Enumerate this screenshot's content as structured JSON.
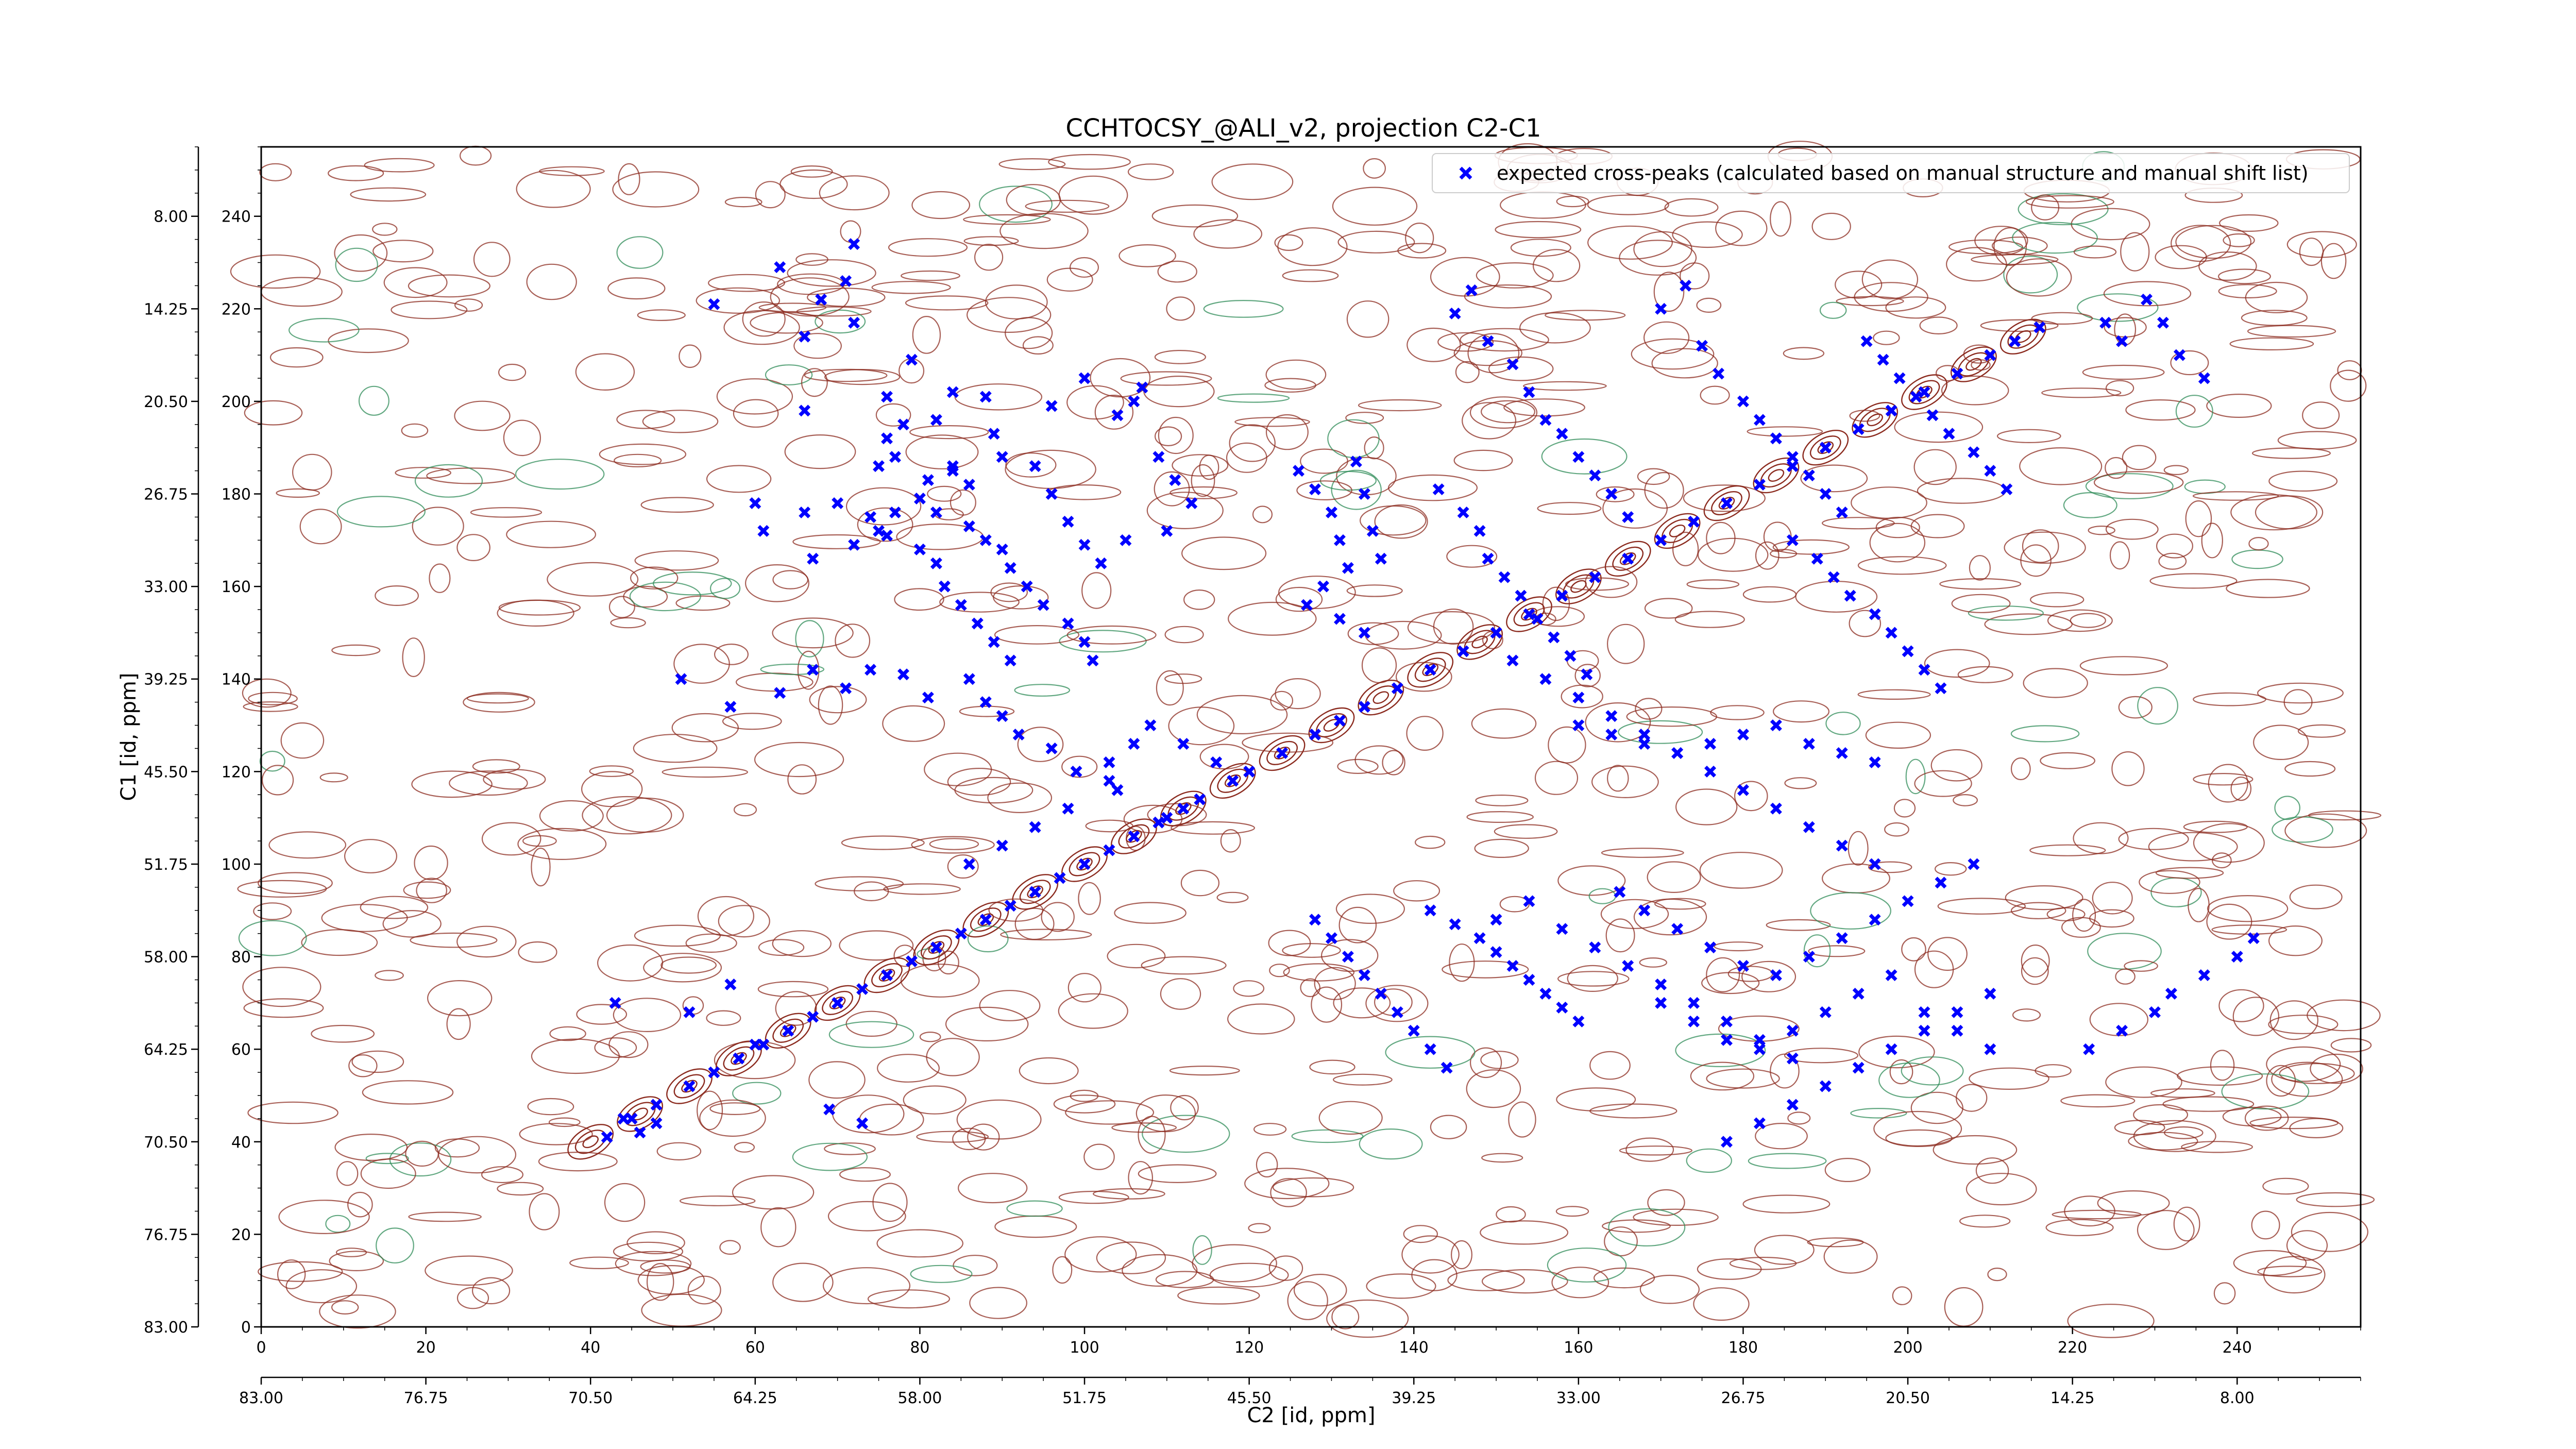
{
  "chart_data": {
    "type": "scatter",
    "title": "CCHTOCSY_@ALI_v2, projection C2-C1",
    "xlabel": "C2 [id, ppm]",
    "ylabel": "C1 [id, ppm]",
    "x_index_ticks": [
      0,
      20,
      40,
      60,
      80,
      100,
      120,
      140,
      160,
      180,
      200,
      220,
      240
    ],
    "x_ppm_ticks": [
      "83.00",
      "76.75",
      "70.50",
      "64.25",
      "58.00",
      "51.75",
      "45.50",
      "39.25",
      "33.00",
      "26.75",
      "20.50",
      "14.25",
      "8.00"
    ],
    "y_index_ticks": [
      0,
      20,
      40,
      60,
      80,
      100,
      120,
      140,
      160,
      180,
      200,
      220,
      240
    ],
    "y_ppm_ticks": [
      "83.00",
      "76.75",
      "70.50",
      "64.25",
      "58.00",
      "51.75",
      "45.50",
      "39.25",
      "33.00",
      "26.75",
      "20.50",
      "14.25",
      "8.00"
    ],
    "xlim": [
      0,
      255
    ],
    "ylim": [
      0,
      255
    ],
    "legend": {
      "label": "expected cross-peaks (calculated based on manual structure and manual shift list)",
      "position": "upper right"
    },
    "colors": {
      "markers": "#0000ff",
      "positive_contours": "#8b2a1e",
      "negative_contours": "#2e8b57"
    },
    "series": [
      {
        "name": "expected cross-peaks (calculated based on manual structure and manual shift list)",
        "marker": "x",
        "points": [
          [
            45,
            45
          ],
          [
            48,
            48
          ],
          [
            52,
            52
          ],
          [
            55,
            55
          ],
          [
            58,
            58
          ],
          [
            61,
            61
          ],
          [
            64,
            64
          ],
          [
            67,
            67
          ],
          [
            70,
            70
          ],
          [
            73,
            73
          ],
          [
            76,
            76
          ],
          [
            79,
            79
          ],
          [
            82,
            82
          ],
          [
            85,
            85
          ],
          [
            88,
            88
          ],
          [
            91,
            91
          ],
          [
            94,
            94
          ],
          [
            97,
            97
          ],
          [
            100,
            100
          ],
          [
            103,
            103
          ],
          [
            106,
            106
          ],
          [
            109,
            109
          ],
          [
            112,
            112
          ],
          [
            120,
            120
          ],
          [
            124,
            124
          ],
          [
            128,
            128
          ],
          [
            131,
            131
          ],
          [
            134,
            134
          ],
          [
            138,
            138
          ],
          [
            142,
            142
          ],
          [
            146,
            146
          ],
          [
            150,
            150
          ],
          [
            154,
            154
          ],
          [
            158,
            158
          ],
          [
            162,
            162
          ],
          [
            166,
            166
          ],
          [
            170,
            170
          ],
          [
            174,
            174
          ],
          [
            178,
            178
          ],
          [
            182,
            182
          ],
          [
            186,
            186
          ],
          [
            190,
            190
          ],
          [
            194,
            194
          ],
          [
            198,
            198
          ],
          [
            202,
            202
          ],
          [
            206,
            206
          ],
          [
            210,
            210
          ],
          [
            213,
            213
          ],
          [
            216,
            216
          ],
          [
            42,
            41
          ],
          [
            60,
            61
          ],
          [
            69,
            47
          ],
          [
            73,
            44
          ],
          [
            48,
            44
          ],
          [
            43,
            70
          ],
          [
            44,
            45
          ],
          [
            46,
            42
          ],
          [
            52,
            68
          ],
          [
            57,
            74
          ],
          [
            55,
            221
          ],
          [
            63,
            229
          ],
          [
            66,
            214
          ],
          [
            68,
            222
          ],
          [
            71,
            226
          ],
          [
            72,
            234
          ],
          [
            66,
            198
          ],
          [
            76,
            201
          ],
          [
            72,
            217
          ],
          [
            79,
            209
          ],
          [
            82,
            196
          ],
          [
            84,
            202
          ],
          [
            88,
            201
          ],
          [
            89,
            193
          ],
          [
            96,
            199
          ],
          [
            100,
            205
          ],
          [
            104,
            197
          ],
          [
            107,
            203
          ],
          [
            67,
            166
          ],
          [
            72,
            169
          ],
          [
            75,
            172
          ],
          [
            77,
            176
          ],
          [
            80,
            179
          ],
          [
            81,
            183
          ],
          [
            84,
            186
          ],
          [
            86,
            173
          ],
          [
            88,
            170
          ],
          [
            90,
            168
          ],
          [
            91,
            164
          ],
          [
            93,
            160
          ],
          [
            95,
            156
          ],
          [
            98,
            152
          ],
          [
            100,
            148
          ],
          [
            101,
            144
          ],
          [
            60,
            178
          ],
          [
            61,
            172
          ],
          [
            66,
            176
          ],
          [
            70,
            178
          ],
          [
            74,
            175
          ],
          [
            76,
            171
          ],
          [
            80,
            168
          ],
          [
            82,
            165
          ],
          [
            83,
            160
          ],
          [
            85,
            156
          ],
          [
            87,
            152
          ],
          [
            89,
            148
          ],
          [
            91,
            144
          ],
          [
            51,
            140
          ],
          [
            57,
            134
          ],
          [
            63,
            137
          ],
          [
            67,
            142
          ],
          [
            71,
            138
          ],
          [
            74,
            142
          ],
          [
            78,
            141
          ],
          [
            81,
            136
          ],
          [
            86,
            140
          ],
          [
            88,
            135
          ],
          [
            90,
            132
          ],
          [
            92,
            128
          ],
          [
            96,
            125
          ],
          [
            99,
            120
          ],
          [
            103,
            118
          ],
          [
            75,
            186
          ],
          [
            76,
            192
          ],
          [
            77,
            188
          ],
          [
            78,
            195
          ],
          [
            82,
            176
          ],
          [
            84,
            185
          ],
          [
            86,
            182
          ],
          [
            90,
            188
          ],
          [
            94,
            186
          ],
          [
            96,
            180
          ],
          [
            98,
            174
          ],
          [
            100,
            169
          ],
          [
            106,
            200
          ],
          [
            109,
            188
          ],
          [
            111,
            183
          ],
          [
            113,
            178
          ],
          [
            110,
            172
          ],
          [
            105,
            170
          ],
          [
            102,
            165
          ],
          [
            126,
            185
          ],
          [
            128,
            181
          ],
          [
            130,
            176
          ],
          [
            131,
            170
          ],
          [
            133,
            187
          ],
          [
            134,
            180
          ],
          [
            135,
            172
          ],
          [
            136,
            166
          ],
          [
            132,
            164
          ],
          [
            129,
            160
          ],
          [
            127,
            156
          ],
          [
            131,
            153
          ],
          [
            134,
            150
          ],
          [
            143,
            181
          ],
          [
            146,
            176
          ],
          [
            148,
            172
          ],
          [
            149,
            166
          ],
          [
            151,
            162
          ],
          [
            153,
            158
          ],
          [
            155,
            153
          ],
          [
            157,
            149
          ],
          [
            159,
            145
          ],
          [
            161,
            141
          ],
          [
            145,
            219
          ],
          [
            147,
            224
          ],
          [
            149,
            213
          ],
          [
            152,
            208
          ],
          [
            154,
            202
          ],
          [
            156,
            196
          ],
          [
            158,
            193
          ],
          [
            160,
            188
          ],
          [
            162,
            184
          ],
          [
            164,
            180
          ],
          [
            166,
            175
          ],
          [
            170,
            220
          ],
          [
            173,
            225
          ],
          [
            175,
            212
          ],
          [
            177,
            206
          ],
          [
            180,
            200
          ],
          [
            182,
            196
          ],
          [
            184,
            192
          ],
          [
            186,
            188
          ],
          [
            188,
            184
          ],
          [
            190,
            180
          ],
          [
            192,
            176
          ],
          [
            195,
            213
          ],
          [
            197,
            209
          ],
          [
            199,
            205
          ],
          [
            201,
            201
          ],
          [
            203,
            197
          ],
          [
            205,
            193
          ],
          [
            208,
            189
          ],
          [
            210,
            185
          ],
          [
            212,
            181
          ],
          [
            224,
            217
          ],
          [
            226,
            213
          ],
          [
            229,
            222
          ],
          [
            231,
            217
          ],
          [
            233,
            210
          ],
          [
            236,
            205
          ],
          [
            186,
            170
          ],
          [
            189,
            166
          ],
          [
            191,
            162
          ],
          [
            193,
            158
          ],
          [
            196,
            154
          ],
          [
            198,
            150
          ],
          [
            200,
            146
          ],
          [
            202,
            142
          ],
          [
            204,
            138
          ],
          [
            152,
            144
          ],
          [
            156,
            140
          ],
          [
            160,
            136
          ],
          [
            164,
            132
          ],
          [
            168,
            128
          ],
          [
            172,
            124
          ],
          [
            176,
            120
          ],
          [
            180,
            116
          ],
          [
            184,
            112
          ],
          [
            188,
            108
          ],
          [
            192,
            104
          ],
          [
            196,
            100
          ],
          [
            160,
            130
          ],
          [
            164,
            128
          ],
          [
            168,
            126
          ],
          [
            172,
            124
          ],
          [
            176,
            126
          ],
          [
            180,
            128
          ],
          [
            184,
            130
          ],
          [
            188,
            126
          ],
          [
            192,
            124
          ],
          [
            196,
            122
          ],
          [
            128,
            88
          ],
          [
            130,
            84
          ],
          [
            132,
            80
          ],
          [
            134,
            76
          ],
          [
            136,
            72
          ],
          [
            138,
            68
          ],
          [
            140,
            64
          ],
          [
            142,
            60
          ],
          [
            144,
            56
          ],
          [
            142,
            90
          ],
          [
            145,
            87
          ],
          [
            148,
            84
          ],
          [
            150,
            81
          ],
          [
            152,
            78
          ],
          [
            154,
            75
          ],
          [
            156,
            72
          ],
          [
            158,
            69
          ],
          [
            160,
            66
          ],
          [
            150,
            88
          ],
          [
            154,
            92
          ],
          [
            158,
            86
          ],
          [
            162,
            82
          ],
          [
            166,
            78
          ],
          [
            170,
            74
          ],
          [
            174,
            70
          ],
          [
            178,
            66
          ],
          [
            182,
            62
          ],
          [
            186,
            58
          ],
          [
            165,
            94
          ],
          [
            168,
            90
          ],
          [
            172,
            86
          ],
          [
            176,
            82
          ],
          [
            180,
            78
          ],
          [
            184,
            76
          ],
          [
            188,
            80
          ],
          [
            192,
            84
          ],
          [
            196,
            88
          ],
          [
            200,
            92
          ],
          [
            204,
            96
          ],
          [
            208,
            100
          ],
          [
            170,
            70
          ],
          [
            174,
            66
          ],
          [
            178,
            62
          ],
          [
            182,
            60
          ],
          [
            186,
            64
          ],
          [
            190,
            68
          ],
          [
            194,
            72
          ],
          [
            198,
            76
          ],
          [
            202,
            68
          ],
          [
            206,
            64
          ],
          [
            210,
            60
          ],
          [
            178,
            40
          ],
          [
            182,
            44
          ],
          [
            186,
            48
          ],
          [
            190,
            52
          ],
          [
            194,
            56
          ],
          [
            198,
            60
          ],
          [
            202,
            64
          ],
          [
            206,
            68
          ],
          [
            210,
            72
          ],
          [
            222,
            60
          ],
          [
            226,
            64
          ],
          [
            230,
            68
          ],
          [
            232,
            72
          ],
          [
            236,
            76
          ],
          [
            240,
            80
          ],
          [
            242,
            84
          ],
          [
            108,
            130
          ],
          [
            112,
            126
          ],
          [
            116,
            122
          ],
          [
            118,
            118
          ],
          [
            114,
            114
          ],
          [
            110,
            110
          ],
          [
            103,
            122
          ],
          [
            106,
            126
          ],
          [
            104,
            116
          ],
          [
            98,
            112
          ],
          [
            94,
            108
          ],
          [
            90,
            104
          ],
          [
            86,
            100
          ]
        ]
      }
    ]
  }
}
